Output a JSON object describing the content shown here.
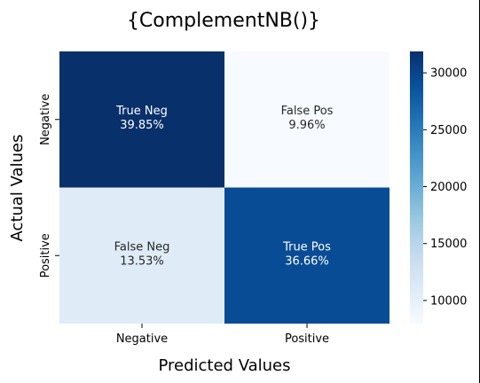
{
  "chart_data": {
    "type": "heatmap",
    "title": "{ComplementNB()}",
    "xlabel": "Predicted Values",
    "ylabel": "Actual Values",
    "x_categories": [
      "Negative",
      "Positive"
    ],
    "y_categories": [
      "Negative",
      "Positive"
    ],
    "cells": [
      [
        {
          "label": "True Neg",
          "percent": "39.85%",
          "percent_value": 39.85,
          "count": 31880
        },
        {
          "label": "False Pos",
          "percent": "9.96%",
          "percent_value": 9.96,
          "count": 7968
        }
      ],
      [
        {
          "label": "False Neg",
          "percent": "13.53%",
          "percent_value": 13.53,
          "count": 10824
        },
        {
          "label": "True Pos",
          "percent": "36.66%",
          "percent_value": 36.66,
          "count": 29328
        }
      ]
    ],
    "colormap": "Blues",
    "colorbar": {
      "ticks": [
        10000,
        15000,
        20000,
        25000,
        30000
      ],
      "tick_labels": [
        "10000",
        "15000",
        "20000",
        "25000",
        "30000"
      ],
      "range": [
        7968,
        31880
      ]
    },
    "colors": {
      "low": "#f7fbff",
      "high": "#08306b"
    }
  }
}
